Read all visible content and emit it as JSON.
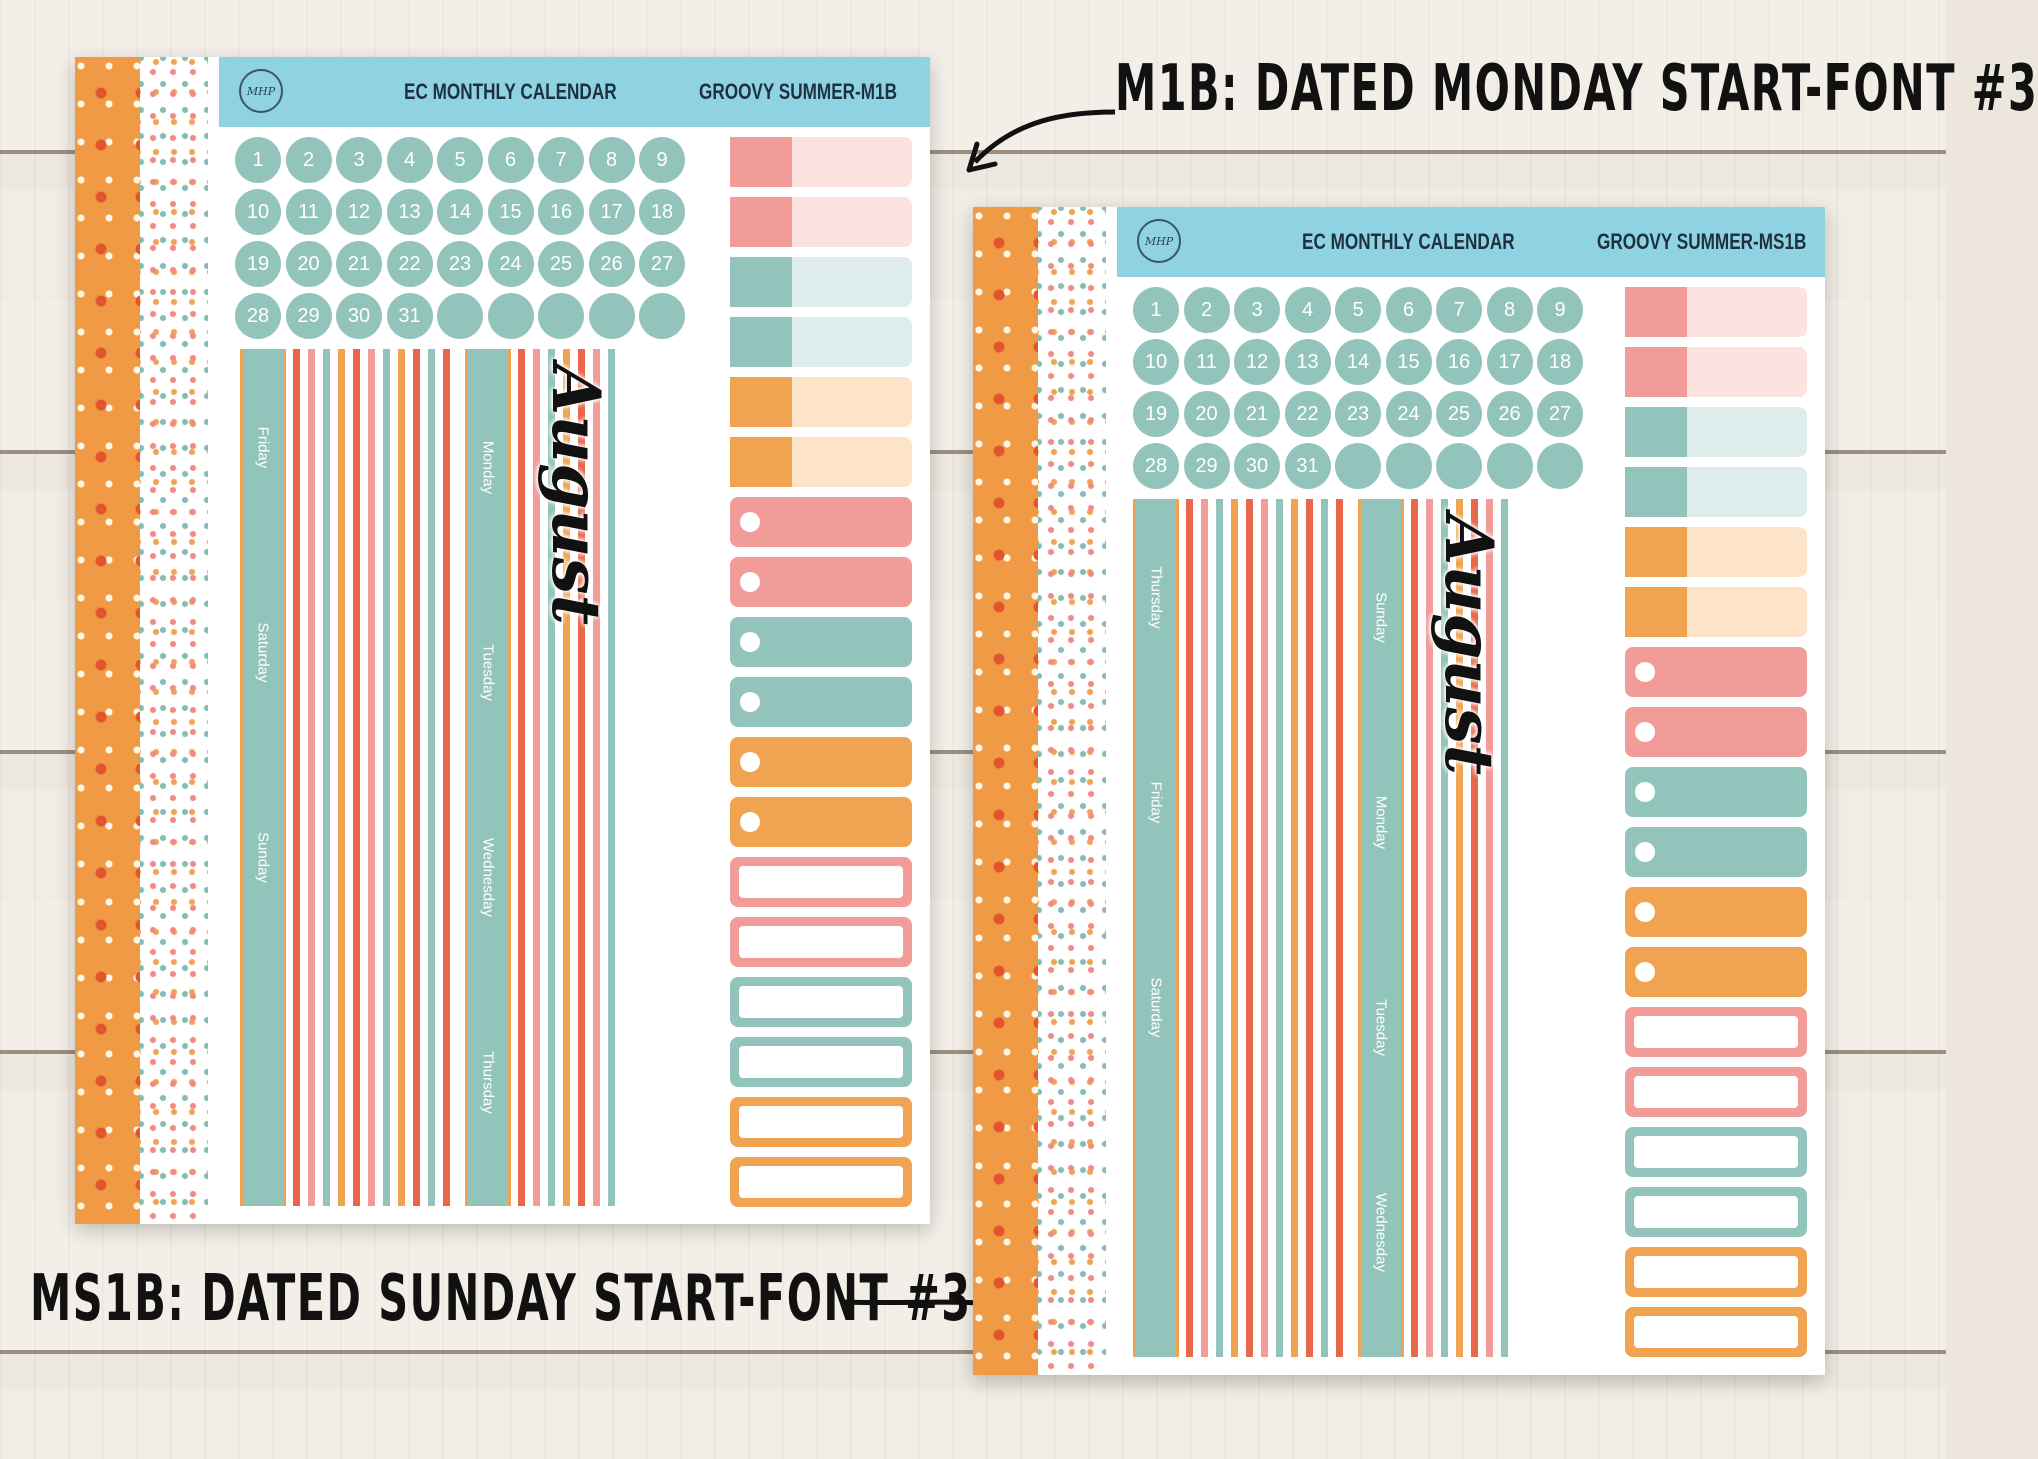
{
  "annotations": {
    "top": "M1B: DATED MONDAY START-FONT #3",
    "bottom": "MS1B: DATED SUNDAY START-FONT #3"
  },
  "sheets": [
    {
      "logo": "MHP",
      "title": "EC MONTHLY CALENDAR",
      "code": "GROOVY SUMMER-M1B",
      "month": "August",
      "dates": [
        "1",
        "2",
        "3",
        "4",
        "5",
        "6",
        "7",
        "8",
        "9",
        "10",
        "11",
        "12",
        "13",
        "14",
        "15",
        "16",
        "17",
        "18",
        "19",
        "20",
        "21",
        "22",
        "23",
        "24",
        "25",
        "26",
        "27",
        "28",
        "29",
        "30",
        "31",
        "",
        "",
        "",
        "",
        ""
      ],
      "col1_days": [
        "Friday",
        "Saturday",
        "Sunday"
      ],
      "col2_days": [
        "Monday",
        "Tuesday",
        "Wednesday",
        "Thursday"
      ]
    },
    {
      "logo": "MHP",
      "title": "EC MONTHLY CALENDAR",
      "code": "GROOVY SUMMER-MS1B",
      "month": "August",
      "dates": [
        "1",
        "2",
        "3",
        "4",
        "5",
        "6",
        "7",
        "8",
        "9",
        "10",
        "11",
        "12",
        "13",
        "14",
        "15",
        "16",
        "17",
        "18",
        "19",
        "20",
        "21",
        "22",
        "23",
        "24",
        "25",
        "26",
        "27",
        "28",
        "29",
        "30",
        "31",
        "",
        "",
        "",
        "",
        ""
      ],
      "col1_days": [
        "Thursday",
        "Friday",
        "Saturday"
      ],
      "col2_days": [
        "Sunday",
        "Monday",
        "Tuesday",
        "Wednesday"
      ]
    }
  ],
  "palette": {
    "pink": "#f19c98",
    "pink_light": "#fde3df",
    "teal": "#93c4bc",
    "teal_light": "#dfeeec",
    "orange": "#f0a350",
    "orange_light": "#fde3c8",
    "coral": "#e8674a"
  }
}
